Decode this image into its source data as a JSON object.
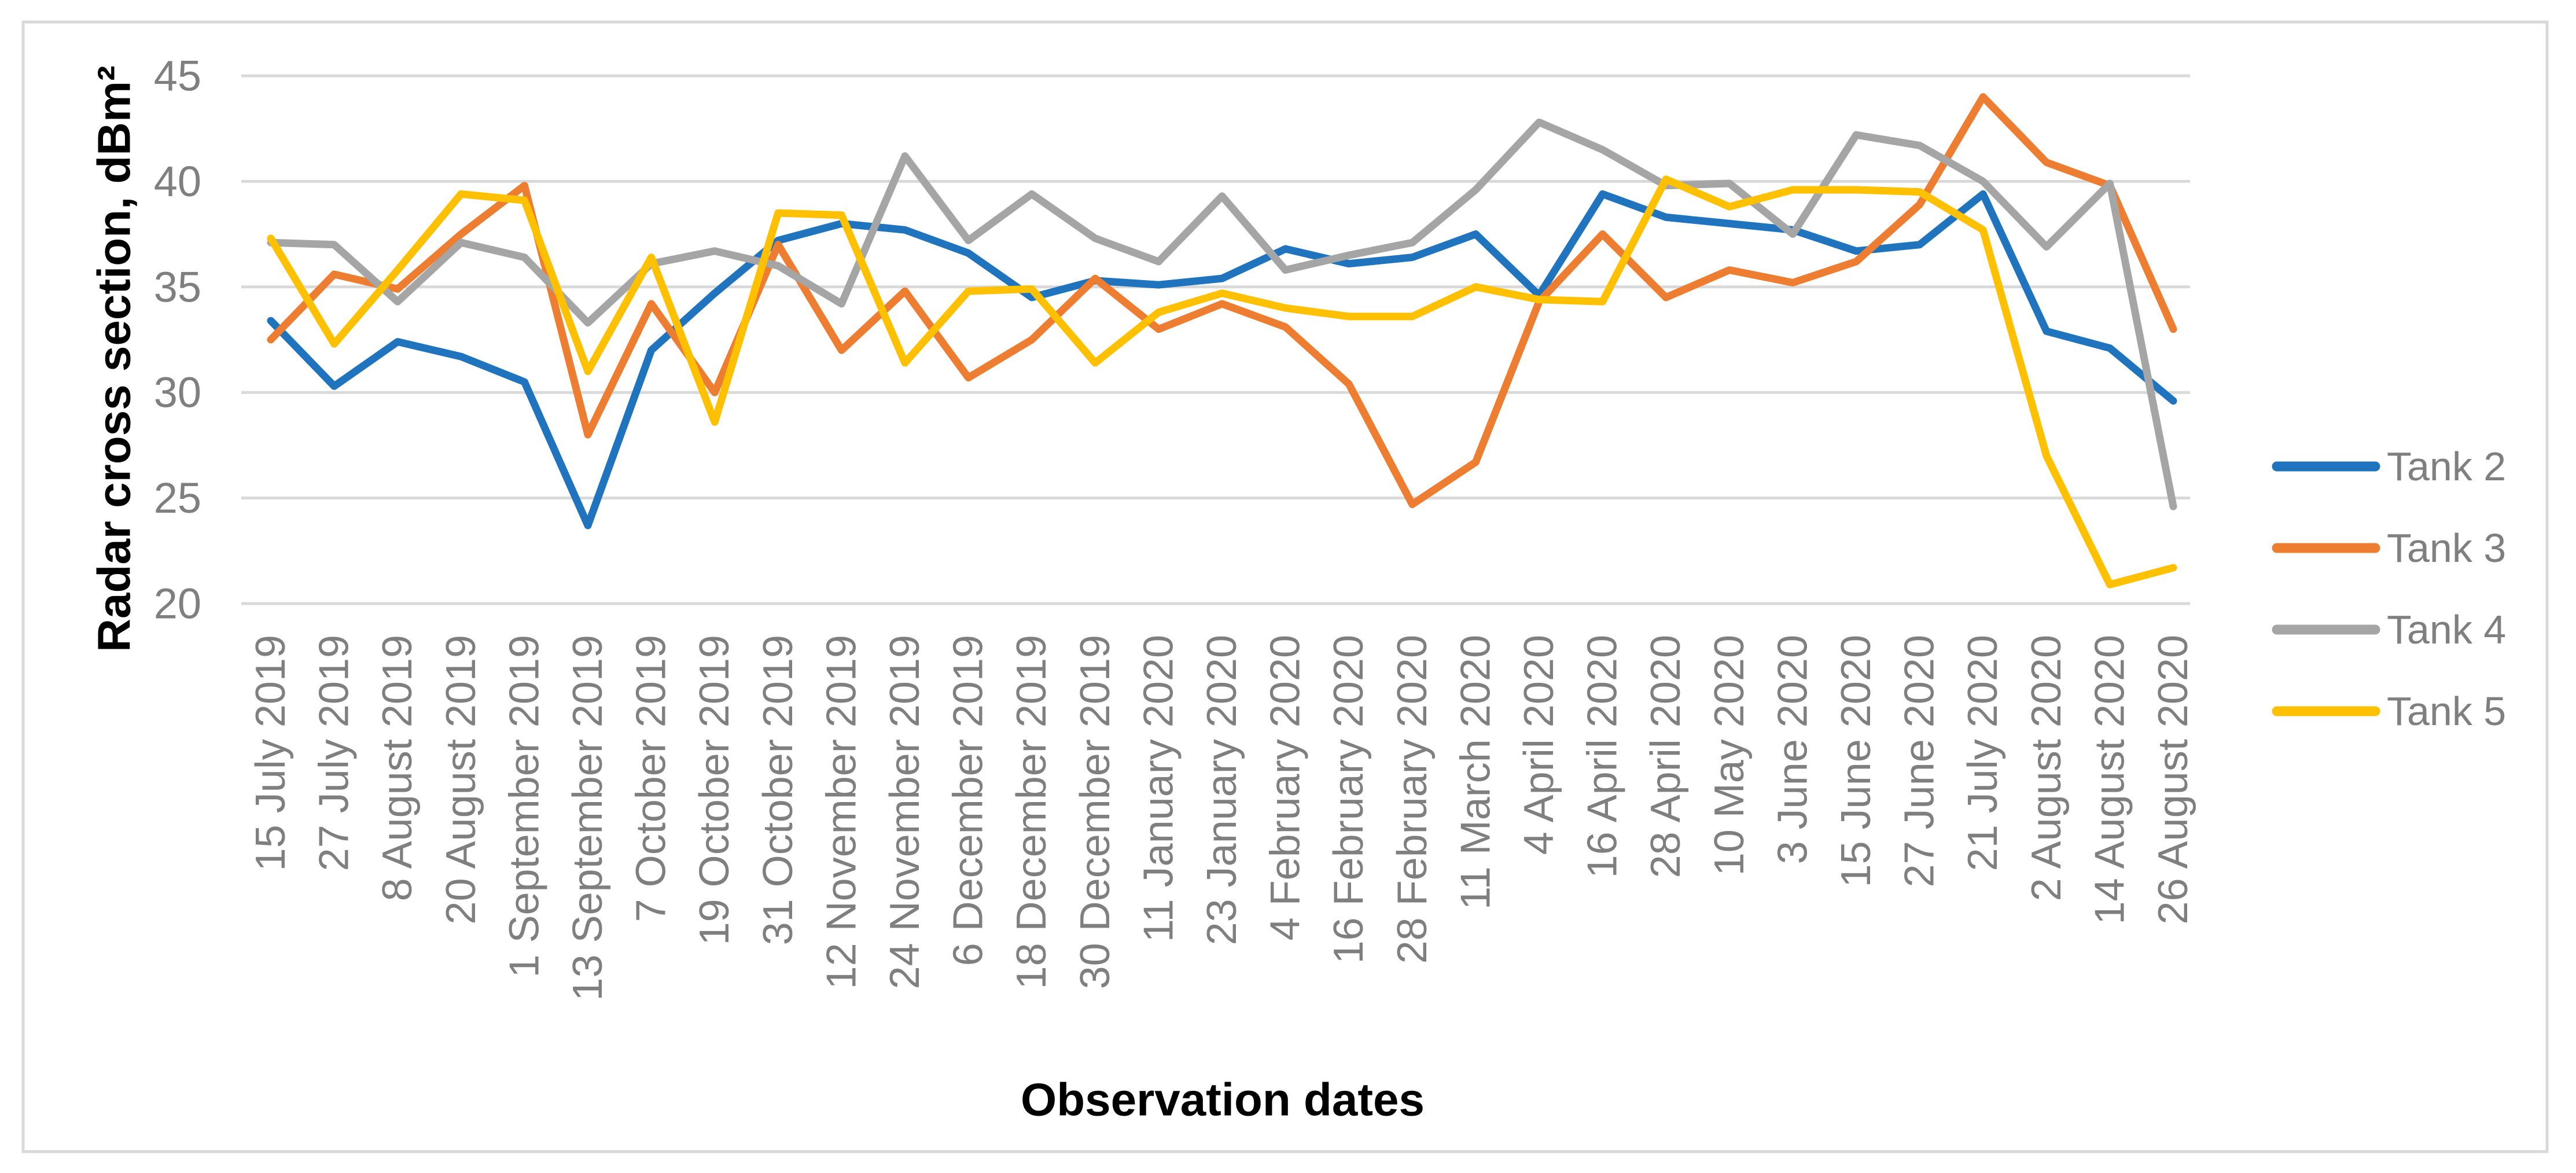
{
  "chart_data": {
    "type": "line",
    "title": "",
    "xlabel": "Observation dates",
    "ylabel": "Radar cross section, dBm²",
    "ylim": [
      20,
      45
    ],
    "yticks": [
      20,
      25,
      30,
      35,
      40,
      45
    ],
    "grid": true,
    "legend_position": "right",
    "categories": [
      "15 July 2019",
      "27 July 2019",
      "8 August 2019",
      "20 August 2019",
      "1 September 2019",
      "13 September 2019",
      "7 October 2019",
      "19 October 2019",
      "31 October 2019",
      "12 November 2019",
      "24 November 2019",
      "6 December 2019",
      "18 December 2019",
      "30 December 2019",
      "11 January 2020",
      "23 January 2020",
      "4 February 2020",
      "16 February 2020",
      "28 February 2020",
      "11 March 2020",
      "4 April 2020",
      "16 April 2020",
      "28 April 2020",
      "10 May 2020",
      "3 June 2020",
      "15 June 2020",
      "27 June 2020",
      "21 July 2020",
      "2 August 2020",
      "14 August 2020",
      "26 August 2020"
    ],
    "series": [
      {
        "name": "Tank 2",
        "color": "#1F74BD",
        "values": [
          33.4,
          30.3,
          32.4,
          31.7,
          30.5,
          23.7,
          32.0,
          34.7,
          37.2,
          38.0,
          37.7,
          36.6,
          34.5,
          35.3,
          35.1,
          35.4,
          36.8,
          36.1,
          36.4,
          37.5,
          34.6,
          39.4,
          38.3,
          38.0,
          37.7,
          36.7,
          37.0,
          39.4,
          32.9,
          32.1,
          29.6
        ]
      },
      {
        "name": "Tank 3",
        "color": "#ED7D31",
        "values": [
          32.5,
          35.6,
          34.9,
          37.5,
          39.8,
          28.0,
          34.2,
          30.0,
          37.0,
          32.0,
          34.8,
          30.7,
          32.5,
          35.4,
          33.0,
          34.2,
          33.1,
          30.4,
          24.7,
          26.7,
          34.3,
          37.5,
          34.5,
          35.8,
          35.2,
          36.2,
          38.9,
          44.0,
          40.9,
          39.8,
          33.0
        ]
      },
      {
        "name": "Tank 4",
        "color": "#A5A5A5",
        "values": [
          37.1,
          37.0,
          34.3,
          37.1,
          36.4,
          33.3,
          36.1,
          36.7,
          36.0,
          34.2,
          41.2,
          37.2,
          39.4,
          37.3,
          36.2,
          39.3,
          35.8,
          36.5,
          37.1,
          39.6,
          42.8,
          41.5,
          39.8,
          39.9,
          37.5,
          42.2,
          41.7,
          40.0,
          36.9,
          39.9,
          24.6
        ]
      },
      {
        "name": "Tank 5",
        "color": "#FFC000",
        "values": [
          37.3,
          32.3,
          35.8,
          39.4,
          39.1,
          31.0,
          36.4,
          28.6,
          38.5,
          38.4,
          31.4,
          34.8,
          34.9,
          31.4,
          33.8,
          34.7,
          34.0,
          33.6,
          33.6,
          35.0,
          34.4,
          34.3,
          40.1,
          38.8,
          39.6,
          39.6,
          39.5,
          37.7,
          27.0,
          20.9,
          21.7
        ]
      }
    ]
  },
  "colors": {
    "background": "#FFFFFF",
    "border": "#D9D9D9",
    "gridline": "#D9D9D9",
    "axis_text": "#7F7F7F",
    "axis_title_text": "#000000"
  }
}
